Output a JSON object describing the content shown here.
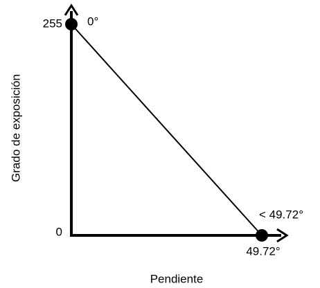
{
  "axes": {
    "x_label": "Pendiente",
    "y_label": "Grado de exposición"
  },
  "points": [
    {
      "y_label": "255",
      "label": "0°"
    },
    {
      "y_label": "0",
      "label": "< 49.72°",
      "x_label": "49.72°"
    }
  ]
}
